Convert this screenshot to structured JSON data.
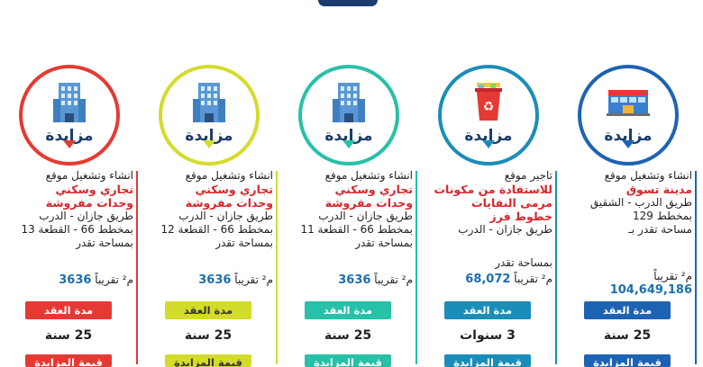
{
  "colors": {
    "red": "#e53a33",
    "yellow": "#d3dc2b",
    "teal": "#27c0a8",
    "blue": "#1a8db8",
    "navy": "#1d63b3",
    "dark_blue": "#1c3b6e"
  },
  "cards": [
    {
      "title": "مزايدة",
      "icon": "office-building-icon",
      "line1": "انشاء وتشغيل موقع",
      "highlight": [
        "مدينة تسوق"
      ],
      "lines": [
        "طريق الدرب - الشقيق",
        "بمخطط 129",
        "مساحة تقدر بـ"
      ],
      "area_value": "104,649,186",
      "area_unit": "م² تقريباً",
      "area_label": "",
      "duration_label": "مدة العقد",
      "duration": "25 سنة",
      "bottom_label": "قيمة المزايدة"
    },
    {
      "title": "مزايدة",
      "icon": "recycle-bin-icon",
      "line1": "تاجير موقع",
      "highlight": [
        "للاستفادة من مكونات",
        "مرمى النفايات خطوط فرز"
      ],
      "lines": [
        "طريق جازان - الدرب"
      ],
      "area_label": "بمساحة تقدر",
      "area_value": "68,072",
      "area_unit": "م² تقريباً",
      "duration_label": "مدة العقد",
      "duration": "3 سنوات",
      "bottom_label": "قيمة المزايدة"
    },
    {
      "title": "مزايدة",
      "icon": "office-building-icon",
      "line1": "انشاء وتشغيل موقع",
      "highlight": [
        "تجاري وسكني",
        "وحدات مفروشة"
      ],
      "lines": [
        "طريق جازان - الدرب",
        "بمخطط 66 - القطعة 11",
        "بمساحة تقدر"
      ],
      "area_label": "",
      "area_value": "3636",
      "area_unit": "م² تقريباً",
      "duration_label": "مدة العقد",
      "duration": "25 سنة",
      "bottom_label": "قيمة المزايدة"
    },
    {
      "title": "مزايدة",
      "icon": "office-building-icon",
      "line1": "انشاء وتشغيل موقع",
      "highlight": [
        "تجاري وسكني",
        "وحدات مفروشة"
      ],
      "lines": [
        "طريق جازان - الدرب",
        "بمخطط 66 - القطعة 12",
        "بمساحة تقدر"
      ],
      "area_label": "",
      "area_value": "3636",
      "area_unit": "م² تقريباً",
      "duration_label": "مدة العقد",
      "duration": "25 سنة",
      "bottom_label": "قيمة المزايدة"
    },
    {
      "title": "مزايدة",
      "icon": "office-building-icon",
      "line1": "انشاء وتشغيل موقع",
      "highlight": [
        "تجاري وسكني",
        "وحدات مفروشة"
      ],
      "lines": [
        "طريق جازان - الدرب",
        "بمخطط 66 - القطعة 13",
        "بمساحة تقدر"
      ],
      "area_label": "",
      "area_value": "3636",
      "area_unit": "م² تقريباً",
      "duration_label": "مدة العقد",
      "duration": "25 سنة",
      "bottom_label": "قيمة المزايدة"
    }
  ]
}
